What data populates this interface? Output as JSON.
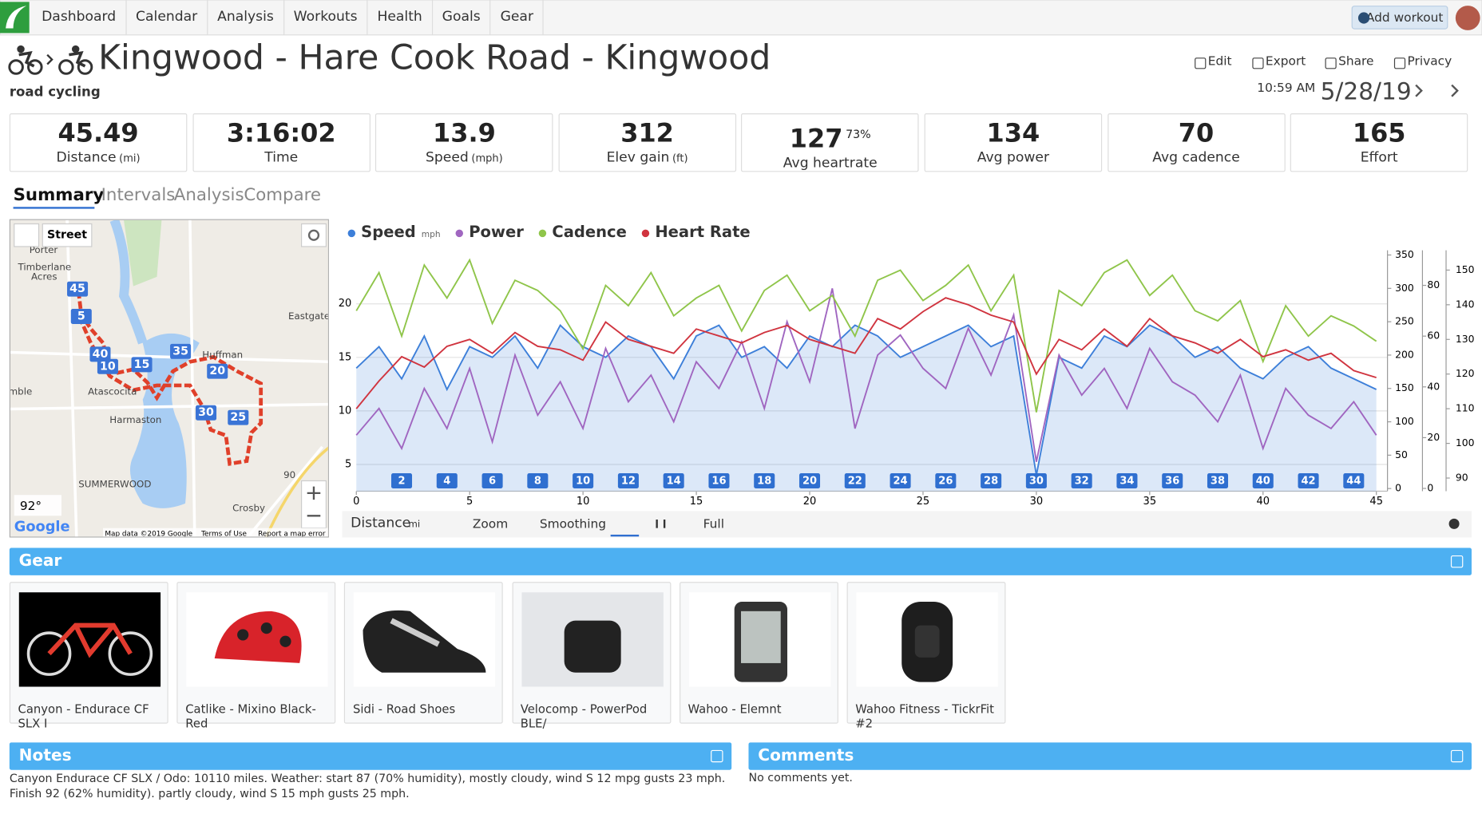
{
  "nav": {
    "items": [
      "Dashboard",
      "Calendar",
      "Analysis",
      "Workouts",
      "Health",
      "Goals",
      "Gear"
    ],
    "add_workout": "Add workout"
  },
  "header": {
    "title": "Kingwood - Hare Cook Road - Kingwood",
    "sport": "road cycling",
    "actions": [
      "Edit",
      "Export",
      "Share",
      "Privacy"
    ],
    "time": "10:59 AM",
    "date": "5/28/19"
  },
  "stats": [
    {
      "value": "45.49",
      "label": "Distance",
      "unit": "(mi)"
    },
    {
      "value": "3:16:02",
      "label": "Time"
    },
    {
      "value": "13.9",
      "label": "Speed",
      "unit": "(mph)"
    },
    {
      "value": "312",
      "label": "Elev gain",
      "unit": "(ft)"
    },
    {
      "value": "127",
      "sup": "73%",
      "label": "Avg heartrate"
    },
    {
      "value": "134",
      "label": "Avg power"
    },
    {
      "value": "70",
      "label": "Avg cadence"
    },
    {
      "value": "165",
      "label": "Effort"
    }
  ],
  "tabs": [
    "Summary",
    "Intervals",
    "Analysis",
    "Compare"
  ],
  "map": {
    "layer": "Street",
    "places": [
      "Porter",
      "Timberlane",
      "Acres",
      "Eastgate",
      "Huffman",
      "mble",
      "Atascocita",
      "Harmaston",
      "SUMMERWOOD",
      "Crosby",
      "90"
    ],
    "laps": [
      "45",
      "5",
      "40",
      "10",
      "15",
      "35",
      "20",
      "30",
      "25"
    ],
    "temperature": "92°",
    "logo": "Google",
    "attribution": "Map data ©2019 Google",
    "terms": "Terms of Use",
    "report": "Report a map error"
  },
  "chart_data": {
    "type": "line",
    "grid": true,
    "x": [
      0,
      1,
      2,
      3,
      4,
      5,
      6,
      7,
      8,
      9,
      10,
      11,
      12,
      13,
      14,
      15,
      16,
      17,
      18,
      19,
      20,
      21,
      22,
      23,
      24,
      25,
      26,
      27,
      28,
      29,
      30,
      31,
      32,
      33,
      34,
      35,
      36,
      37,
      38,
      39,
      40,
      41,
      42,
      43,
      44,
      45
    ],
    "xlim": [
      0,
      45.49
    ],
    "xticks": [
      0,
      5,
      10,
      15,
      20,
      25,
      30,
      35,
      40,
      45
    ],
    "ylim": [
      2.5,
      25
    ],
    "yticks": [
      5,
      10,
      15,
      20
    ],
    "y2lim": [
      -4,
      357
    ],
    "y2ticks": [
      0,
      50,
      100,
      150,
      200,
      250,
      300,
      350
    ],
    "y3lim": [
      -1.1,
      93.8
    ],
    "y3ticks": [
      0,
      20,
      40,
      60,
      80
    ],
    "y4lim": [
      86.2,
      155.7
    ],
    "y4ticks": [
      90,
      100,
      110,
      120,
      130,
      140,
      150
    ],
    "series": [
      {
        "name": "Speed",
        "unit": "mph",
        "color": "#3d7fd9",
        "axis": "y",
        "values": [
          14,
          16,
          13,
          17,
          12,
          16,
          15,
          17,
          14,
          18,
          16,
          15,
          17,
          16,
          13,
          17,
          18,
          15,
          16,
          14,
          17,
          16,
          18,
          17,
          15,
          16,
          17,
          18,
          16,
          17,
          4,
          15,
          14,
          17,
          16,
          18,
          17,
          15,
          16,
          14,
          13,
          15,
          16,
          14,
          13,
          12
        ]
      },
      {
        "name": "Power",
        "color": "#a066c0",
        "axis": "y2",
        "values": [
          80,
          120,
          60,
          150,
          90,
          180,
          70,
          200,
          110,
          160,
          90,
          210,
          130,
          170,
          100,
          190,
          150,
          220,
          120,
          250,
          160,
          300,
          90,
          200,
          230,
          180,
          150,
          240,
          170,
          260,
          40,
          200,
          140,
          180,
          120,
          210,
          160,
          140,
          100,
          170,
          60,
          150,
          110,
          90,
          130,
          80
        ]
      },
      {
        "name": "Cadence",
        "color": "#8fc54a",
        "axis": "y3",
        "values": [
          70,
          85,
          60,
          88,
          75,
          90,
          65,
          82,
          78,
          70,
          55,
          80,
          72,
          85,
          68,
          75,
          80,
          62,
          78,
          84,
          70,
          76,
          60,
          82,
          86,
          74,
          80,
          88,
          70,
          84,
          30,
          78,
          72,
          85,
          90,
          76,
          84,
          70,
          66,
          74,
          50,
          72,
          60,
          68,
          64,
          58
        ]
      },
      {
        "name": "Heart Rate",
        "color": "#d0343f",
        "axis": "y4",
        "values": [
          110,
          118,
          125,
          122,
          128,
          130,
          126,
          132,
          128,
          127,
          124,
          135,
          130,
          128,
          126,
          133,
          131,
          129,
          132,
          134,
          130,
          128,
          126,
          136,
          133,
          138,
          142,
          140,
          137,
          135,
          120,
          130,
          127,
          133,
          128,
          136,
          131,
          129,
          126,
          130,
          125,
          127,
          124,
          126,
          121,
          119
        ]
      }
    ],
    "laps": [
      2,
      4,
      6,
      8,
      10,
      12,
      14,
      16,
      18,
      20,
      22,
      24,
      26,
      28,
      30,
      32,
      34,
      36,
      38,
      40,
      42,
      44
    ]
  },
  "chart_controls": {
    "x_axis": "Distance",
    "unit": "mi",
    "zoom": "Zoom",
    "smoothing": "Smoothing",
    "full": "Full"
  },
  "gear": {
    "title": "Gear",
    "items": [
      "Canyon - Endurace CF SLX I",
      "Catlike - Mixino Black-Red",
      "Sidi - Road Shoes",
      "Velocomp - PowerPod BLE/",
      "Wahoo - Elemnt",
      "Wahoo Fitness - TickrFit #2"
    ]
  },
  "notes": {
    "title": "Notes",
    "text": "Canyon Endurace CF SLX / Odo: 10110 miles. Weather: start 87 (70% humidity), mostly cloudy, wind S 12 mpg gusts 23 mph. Finish 92 (62% humidity). partly cloudy, wind S 15 mph gusts 25 mph."
  },
  "comments": {
    "title": "Comments",
    "text": "No comments yet."
  }
}
